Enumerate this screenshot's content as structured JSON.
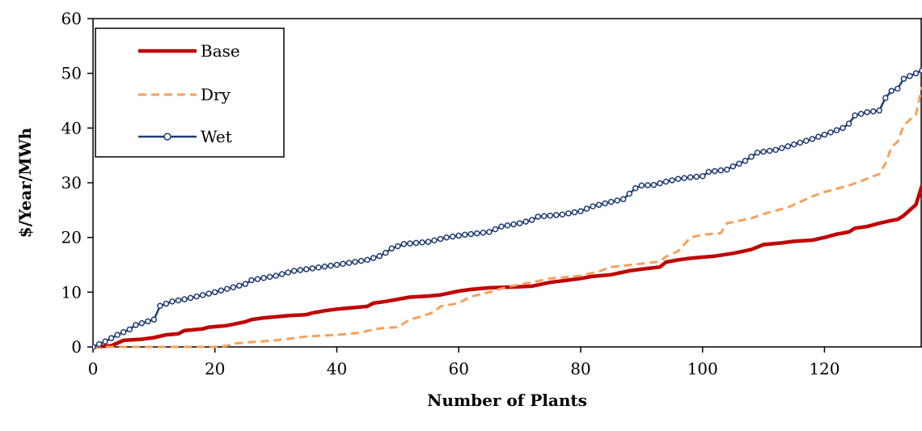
{
  "chart_data": {
    "type": "line",
    "title": "",
    "xlabel": "Number of Plants",
    "ylabel": "$/Year/MWh",
    "xlim": [
      0,
      136
    ],
    "ylim": [
      0,
      60
    ],
    "xticks": [
      0,
      20,
      40,
      60,
      80,
      100,
      120
    ],
    "yticks": [
      0,
      10,
      20,
      30,
      40,
      50,
      60
    ],
    "legend_position": "top-left",
    "series": [
      {
        "name": "Base",
        "color": "#c00000",
        "style": "solid-thick",
        "points": [
          [
            0,
            0
          ],
          [
            3,
            0.2
          ],
          [
            5,
            1.2
          ],
          [
            8,
            1.4
          ],
          [
            10,
            1.7
          ],
          [
            12,
            2.2
          ],
          [
            14,
            2.4
          ],
          [
            15,
            3.0
          ],
          [
            18,
            3.3
          ],
          [
            19,
            3.6
          ],
          [
            22,
            3.9
          ],
          [
            25,
            4.6
          ],
          [
            26,
            5.0
          ],
          [
            28,
            5.3
          ],
          [
            30,
            5.5
          ],
          [
            32,
            5.7
          ],
          [
            35,
            5.9
          ],
          [
            36,
            6.2
          ],
          [
            38,
            6.6
          ],
          [
            40,
            6.9
          ],
          [
            45,
            7.4
          ],
          [
            46,
            8.0
          ],
          [
            48,
            8.3
          ],
          [
            50,
            8.7
          ],
          [
            52,
            9.1
          ],
          [
            55,
            9.3
          ],
          [
            57,
            9.5
          ],
          [
            60,
            10.2
          ],
          [
            62,
            10.5
          ],
          [
            65,
            10.8
          ],
          [
            70,
            11.0
          ],
          [
            72,
            11.1
          ],
          [
            75,
            11.8
          ],
          [
            78,
            12.2
          ],
          [
            80,
            12.5
          ],
          [
            82,
            12.9
          ],
          [
            85,
            13.2
          ],
          [
            88,
            13.9
          ],
          [
            90,
            14.2
          ],
          [
            93,
            14.6
          ],
          [
            94,
            15.5
          ],
          [
            96,
            15.9
          ],
          [
            98,
            16.2
          ],
          [
            100,
            16.4
          ],
          [
            102,
            16.6
          ],
          [
            105,
            17.1
          ],
          [
            108,
            17.8
          ],
          [
            110,
            18.7
          ],
          [
            113,
            19.0
          ],
          [
            115,
            19.3
          ],
          [
            118,
            19.5
          ],
          [
            120,
            20.0
          ],
          [
            122,
            20.6
          ],
          [
            124,
            21.0
          ],
          [
            125,
            21.7
          ],
          [
            127,
            22.0
          ],
          [
            129,
            22.6
          ],
          [
            131,
            23.1
          ],
          [
            132,
            23.3
          ],
          [
            133,
            24.0
          ],
          [
            134,
            25.0
          ],
          [
            135,
            26.0
          ],
          [
            136,
            29.5
          ]
        ]
      },
      {
        "name": "Dry",
        "color": "#f4a15d",
        "style": "dashed",
        "points": [
          [
            0,
            0
          ],
          [
            20,
            0
          ],
          [
            22,
            0.2
          ],
          [
            23,
            0.6
          ],
          [
            25,
            0.8
          ],
          [
            30,
            1.2
          ],
          [
            33,
            1.6
          ],
          [
            35,
            1.9
          ],
          [
            40,
            2.2
          ],
          [
            44,
            2.6
          ],
          [
            46,
            3.2
          ],
          [
            48,
            3.5
          ],
          [
            50,
            3.6
          ],
          [
            52,
            5.0
          ],
          [
            54,
            5.6
          ],
          [
            56,
            6.4
          ],
          [
            57,
            7.4
          ],
          [
            60,
            8.0
          ],
          [
            62,
            9.2
          ],
          [
            65,
            10.0
          ],
          [
            68,
            11.0
          ],
          [
            72,
            11.8
          ],
          [
            75,
            12.5
          ],
          [
            80,
            13.0
          ],
          [
            83,
            13.8
          ],
          [
            85,
            14.6
          ],
          [
            90,
            15.2
          ],
          [
            93,
            15.6
          ],
          [
            94,
            16.5
          ],
          [
            96,
            17.5
          ],
          [
            98,
            20.0
          ],
          [
            100,
            20.5
          ],
          [
            103,
            20.8
          ],
          [
            104,
            22.6
          ],
          [
            108,
            23.5
          ],
          [
            110,
            24.3
          ],
          [
            114,
            25.5
          ],
          [
            116,
            26.5
          ],
          [
            118,
            27.5
          ],
          [
            120,
            28.3
          ],
          [
            124,
            29.5
          ],
          [
            126,
            30.3
          ],
          [
            128,
            31.2
          ],
          [
            129,
            31.6
          ],
          [
            130,
            33.5
          ],
          [
            131,
            36.5
          ],
          [
            132,
            37.5
          ],
          [
            133,
            40.5
          ],
          [
            134,
            41.5
          ],
          [
            135,
            42.5
          ],
          [
            136,
            47.5
          ]
        ]
      },
      {
        "name": "Wet",
        "color": "#1f3c73",
        "style": "solid-markers",
        "points": [
          [
            0,
            0
          ],
          [
            2,
            1
          ],
          [
            4,
            2.2
          ],
          [
            6,
            3.2
          ],
          [
            7,
            4
          ],
          [
            10,
            5
          ],
          [
            11,
            7.5
          ],
          [
            13,
            8.3
          ],
          [
            15,
            8.7
          ],
          [
            20,
            10
          ],
          [
            25,
            11.5
          ],
          [
            26,
            12.2
          ],
          [
            30,
            13
          ],
          [
            33,
            13.9
          ],
          [
            35,
            14.2
          ],
          [
            40,
            15
          ],
          [
            45,
            15.9
          ],
          [
            47,
            16.6
          ],
          [
            48,
            17.2
          ],
          [
            49,
            18.0
          ],
          [
            51,
            18.8
          ],
          [
            55,
            19.2
          ],
          [
            58,
            20.0
          ],
          [
            61,
            20.5
          ],
          [
            65,
            21.0
          ],
          [
            67,
            22.0
          ],
          [
            70,
            22.6
          ],
          [
            72,
            23.2
          ],
          [
            73,
            23.8
          ],
          [
            77,
            24.2
          ],
          [
            80,
            24.8
          ],
          [
            82,
            25.7
          ],
          [
            85,
            26.5
          ],
          [
            87,
            27.0
          ],
          [
            88,
            28.0
          ],
          [
            89,
            29.0
          ],
          [
            90,
            29.5
          ],
          [
            92,
            29.6
          ],
          [
            94,
            30.2
          ],
          [
            96,
            30.7
          ],
          [
            98,
            31.0
          ],
          [
            100,
            31.2
          ],
          [
            101,
            32.0
          ],
          [
            104,
            32.4
          ],
          [
            105,
            33.0
          ],
          [
            107,
            34.0
          ],
          [
            109,
            35.5
          ],
          [
            112,
            36.0
          ],
          [
            115,
            37.0
          ],
          [
            118,
            38.0
          ],
          [
            120,
            38.8
          ],
          [
            123,
            40.0
          ],
          [
            124,
            40.8
          ],
          [
            125,
            42.3
          ],
          [
            127,
            42.9
          ],
          [
            129,
            43.2
          ],
          [
            130,
            45.5
          ],
          [
            131,
            46.8
          ],
          [
            132,
            47.2
          ],
          [
            133,
            49.0
          ],
          [
            135,
            50.0
          ],
          [
            136,
            50.5
          ]
        ]
      }
    ]
  }
}
